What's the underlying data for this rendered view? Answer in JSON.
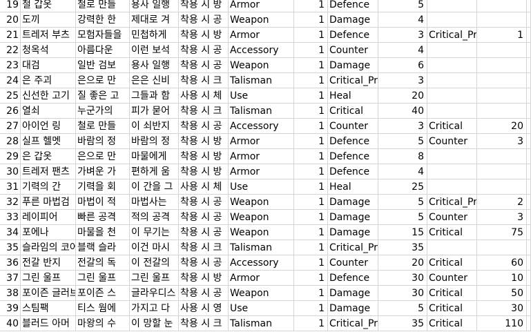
{
  "sheet": {
    "rows": [
      {
        "rh": "19",
        "c": [
          "철 갑옷",
          "철로 만들",
          "용사 일행",
          "착용 시 방",
          "Armor",
          "1",
          "Defence",
          "5",
          "",
          "",
          ""
        ]
      },
      {
        "rh": "20",
        "c": [
          "도끼",
          "강력한 한",
          "제대로 겨",
          "착용 시 공",
          "Weapon",
          "1",
          "Damage",
          "4",
          "",
          "",
          ""
        ]
      },
      {
        "rh": "21",
        "c": [
          "트레저 부츠",
          "모험자들을",
          "민첩하게",
          "착용 시 방",
          "Armor",
          "1",
          "Defence",
          "3",
          "Critical_Pr",
          "1",
          ""
        ]
      },
      {
        "rh": "22",
        "c": [
          "청옥석",
          "아름다운",
          "이런 보석",
          "착용 시 공",
          "Accessory",
          "1",
          "Counter",
          "4",
          "",
          "",
          ""
        ]
      },
      {
        "rh": "23",
        "c": [
          "대검",
          "일반 검보",
          "용사 일행",
          "착용 시 공",
          "Weapon",
          "1",
          "Damage",
          "6",
          "",
          "",
          ""
        ]
      },
      {
        "rh": "24",
        "c": [
          "은 주괴",
          "은으로 만",
          "은은 신비",
          "착용 시 크",
          "Talisman",
          "1",
          "Critical_Pr",
          "3",
          "",
          "",
          ""
        ]
      },
      {
        "rh": "25",
        "c": [
          "신선한 고기",
          "질 좋은 고",
          "그들과 함",
          "사용 시 체",
          "Use",
          "1",
          "Heal",
          "20",
          "",
          "",
          ""
        ]
      },
      {
        "rh": "26",
        "c": [
          "열쇠",
          "누군가의",
          "피가 묻어",
          "착용 시 크",
          "Talisman",
          "1",
          "Critical",
          "40",
          "",
          "",
          ""
        ]
      },
      {
        "rh": "27",
        "c": [
          "아이언 링",
          "철로 만들",
          "이 쇠반지",
          "착용 시 공",
          "Accessory",
          "1",
          "Counter",
          "3",
          "Critical",
          "20",
          ""
        ]
      },
      {
        "rh": "28",
        "c": [
          "실프 헬멧",
          "바람의 정",
          "바람의 정",
          "착용 시 방",
          "Armor",
          "1",
          "Defence",
          "5",
          "Counter",
          "3",
          ""
        ]
      },
      {
        "rh": "29",
        "c": [
          "은 갑옷",
          "은으로 만",
          "마물에게",
          "착용 시 방",
          "Armor",
          "1",
          "Defence",
          "8",
          "",
          "",
          ""
        ]
      },
      {
        "rh": "30",
        "c": [
          "트레저 팬츠",
          "가벼운 가",
          "편하게 움",
          "착용 시 방",
          "Armor",
          "1",
          "Defence",
          "4",
          "",
          "",
          ""
        ]
      },
      {
        "rh": "31",
        "c": [
          "기력의 간",
          "기력을 회",
          "이 간을 그",
          "사용 시 체",
          "Use",
          "1",
          "Heal",
          "25",
          "",
          "",
          ""
        ]
      },
      {
        "rh": "32",
        "c": [
          "푸른 마법검",
          "마법이 적",
          "마법사는",
          "착용 시 공",
          "Weapon",
          "1",
          "Damage",
          "5",
          "Critical_Pr",
          "2",
          ""
        ]
      },
      {
        "rh": "33",
        "c": [
          "레이피어",
          "빠른 공격",
          "적의 공격",
          "착용 시 공",
          "Weapon",
          "1",
          "Damage",
          "5",
          "Counter",
          "3",
          ""
        ]
      },
      {
        "rh": "34",
        "c": [
          "포에나",
          "마물을 천",
          "이 무기는",
          "착용 시 공",
          "Weapon",
          "1",
          "Damage",
          "15",
          "Critical",
          "75",
          ""
        ]
      },
      {
        "rh": "35",
        "c": [
          "슬라임의 코어",
          "블랙 슬라",
          "이건 마시",
          "착용 시 크",
          "Talisman",
          "1",
          "Critical_Pr",
          "35",
          "",
          "",
          ""
        ]
      },
      {
        "rh": "36",
        "c": [
          "전갈 반지",
          "전갈의 독",
          "이 전갈의",
          "착용 시 공",
          "Accessory",
          "1",
          "Counter",
          "20",
          "Critical",
          "60",
          ""
        ]
      },
      {
        "rh": "37",
        "c": [
          "그린 울프",
          "그린 울프",
          "그린 울프",
          "착용 시 방",
          "Armor",
          "1",
          "Defence",
          "30",
          "Counter",
          "10",
          ""
        ]
      },
      {
        "rh": "38",
        "c": [
          "포이즌 글러브",
          "포이즌 스",
          "글라우디스",
          "착용 시 공",
          "Weapon",
          "1",
          "Damage",
          "30",
          "Critical",
          "50",
          ""
        ]
      },
      {
        "rh": "39",
        "c": [
          "스팀팩",
          "티스 웜에",
          "가지고 다",
          "사용 시 영",
          "Use",
          "1",
          "Damage",
          "5",
          "Critical",
          "30",
          ""
        ]
      },
      {
        "rh": "40",
        "c": [
          "블러드 아머",
          "마왕의 수",
          "이 망할 눈",
          "착용 시 크",
          "Talisman",
          "1",
          "Critical_Pr",
          "35",
          "Critical",
          "110",
          ""
        ]
      }
    ]
  }
}
